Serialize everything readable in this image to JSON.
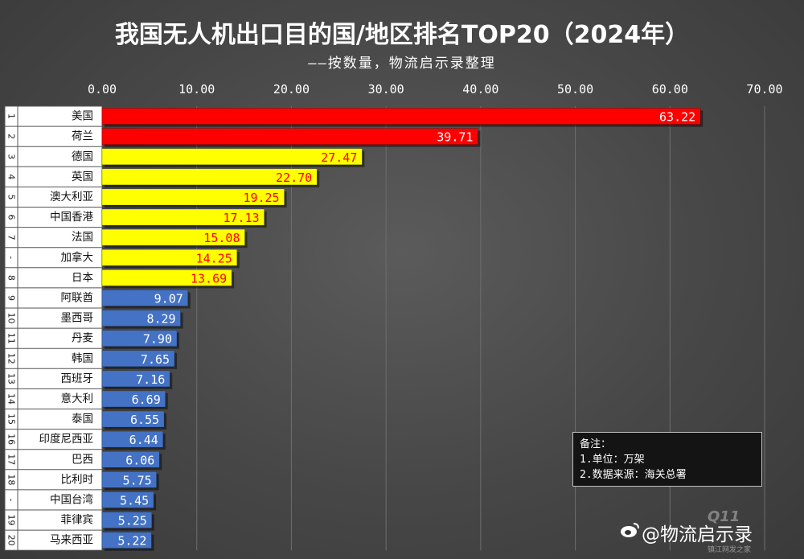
{
  "chart_data": {
    "type": "bar",
    "orientation": "horizontal",
    "title": "我国无人机出口目的国/地区排名TOP20（2024年）",
    "subtitle": "——按数量，物流启示录整理",
    "xlim": [
      0,
      70
    ],
    "x_ticks": [
      "0.00",
      "10.00",
      "20.00",
      "30.00",
      "40.00",
      "50.00",
      "60.00",
      "70.00"
    ],
    "grid": true,
    "rows": [
      {
        "rank": "1",
        "name": "美国",
        "value": 63.22,
        "label": "63.22",
        "color": "#ff0000"
      },
      {
        "rank": "2",
        "name": "荷兰",
        "value": 39.71,
        "label": "39.71",
        "color": "#ff0000"
      },
      {
        "rank": "3",
        "name": "德国",
        "value": 27.47,
        "label": "27.47",
        "color": "#ffff00"
      },
      {
        "rank": "4",
        "name": "英国",
        "value": 22.7,
        "label": "22.70",
        "color": "#ffff00"
      },
      {
        "rank": "5",
        "name": "澳大利亚",
        "value": 19.25,
        "label": "19.25",
        "color": "#ffff00"
      },
      {
        "rank": "6",
        "name": "中国香港",
        "value": 17.13,
        "label": "17.13",
        "color": "#ffff00"
      },
      {
        "rank": "7",
        "name": "法国",
        "value": 15.08,
        "label": "15.08",
        "color": "#ffff00"
      },
      {
        "rank": "-",
        "name": "加拿大",
        "value": 14.25,
        "label": "14.25",
        "color": "#ffff00"
      },
      {
        "rank": "8",
        "name": "日本",
        "value": 13.69,
        "label": "13.69",
        "color": "#ffff00"
      },
      {
        "rank": "9",
        "name": "阿联酋",
        "value": 9.07,
        "label": "9.07",
        "color": "#4472c4"
      },
      {
        "rank": "10",
        "name": "墨西哥",
        "value": 8.29,
        "label": "8.29",
        "color": "#4472c4"
      },
      {
        "rank": "11",
        "name": "丹麦",
        "value": 7.9,
        "label": "7.90",
        "color": "#4472c4"
      },
      {
        "rank": "12",
        "name": "韩国",
        "value": 7.65,
        "label": "7.65",
        "color": "#4472c4"
      },
      {
        "rank": "13",
        "name": "西班牙",
        "value": 7.16,
        "label": "7.16",
        "color": "#4472c4"
      },
      {
        "rank": "14",
        "name": "意大利",
        "value": 6.69,
        "label": "6.69",
        "color": "#4472c4"
      },
      {
        "rank": "15",
        "name": "泰国",
        "value": 6.55,
        "label": "6.55",
        "color": "#4472c4"
      },
      {
        "rank": "16",
        "name": "印度尼西亚",
        "value": 6.44,
        "label": "6.44",
        "color": "#4472c4"
      },
      {
        "rank": "17",
        "name": "巴西",
        "value": 6.06,
        "label": "6.06",
        "color": "#4472c4"
      },
      {
        "rank": "18",
        "name": "比利时",
        "value": 5.75,
        "label": "5.75",
        "color": "#4472c4"
      },
      {
        "rank": "-",
        "name": "中国台湾",
        "value": 5.45,
        "label": "5.45",
        "color": "#4472c4"
      },
      {
        "rank": "19",
        "name": "菲律宾",
        "value": 5.25,
        "label": "5.25",
        "color": "#4472c4"
      },
      {
        "rank": "20",
        "name": "马来西亚",
        "value": 5.22,
        "label": "5.22",
        "color": "#4472c4"
      }
    ]
  },
  "note": {
    "heading": "备注：",
    "line1": "1.单位：万架",
    "line2": "2.数据来源：海关总署"
  },
  "watermark": {
    "text": "@物流启示录",
    "site_mark": "Q11",
    "site_text": "镇江网发之家"
  }
}
